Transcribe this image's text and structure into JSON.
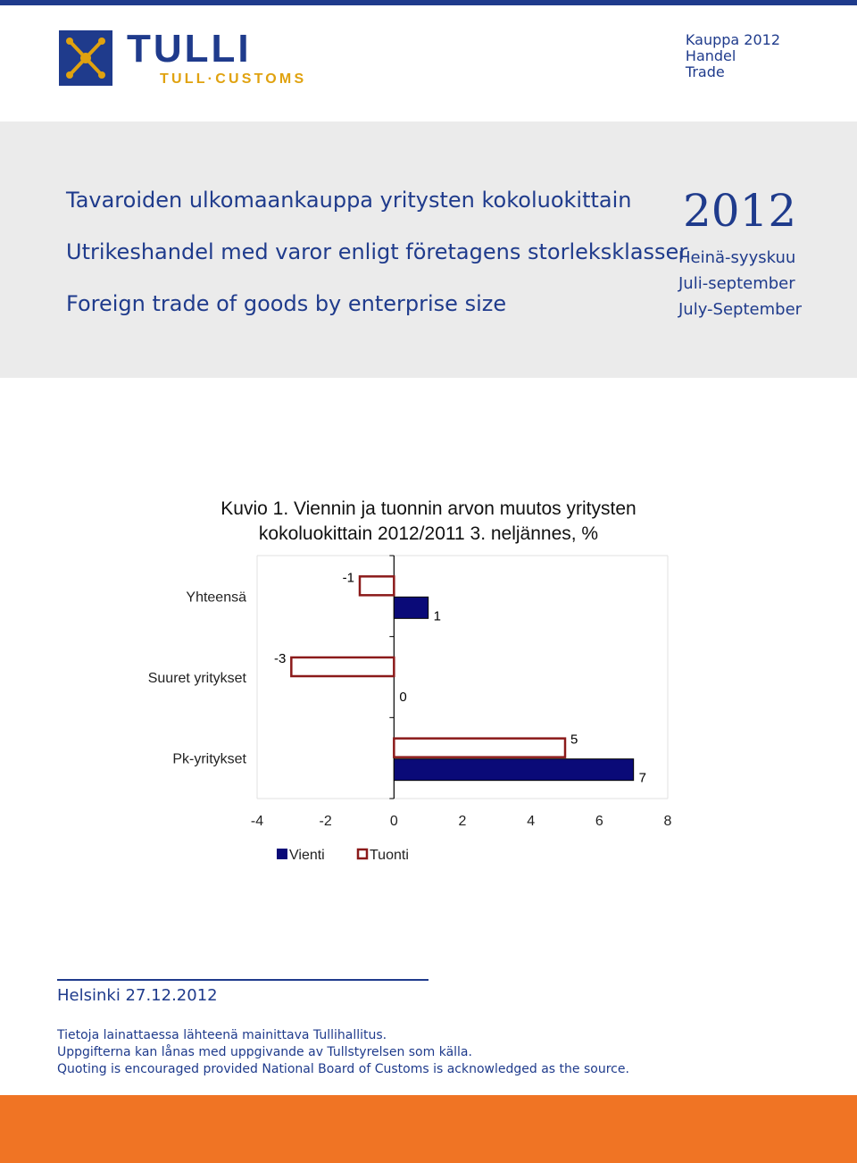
{
  "header": {
    "logo_word": "TULLI",
    "logo_sub": "TULL·CUSTOMS",
    "series": [
      "Kauppa 2012",
      "Handel",
      "Trade"
    ]
  },
  "banner": {
    "titles": [
      "Tavaroiden ulkomaankauppa yritysten kokoluokittain",
      "Utrikeshandel med varor enligt företagens storleksklasser",
      "Foreign trade of goods by enterprise size"
    ],
    "year": "2012",
    "period": [
      "Heinä-syyskuu",
      "Juli-september",
      "July-September"
    ]
  },
  "colors": {
    "accent": "#1f3b8c",
    "vienti": "#0a0a78",
    "tuonti": "#8b1a1a",
    "orange": "#f07424"
  },
  "chart_data": {
    "type": "bar",
    "orientation": "horizontal",
    "title": "Kuvio 1. Viennin ja tuonnin arvon muutos yritysten kokoluokittain 2012/2011 3. neljännes, %",
    "categories": [
      "Yhteensä",
      "Suuret yritykset",
      "Pk-yritykset"
    ],
    "series": [
      {
        "name": "Vienti",
        "values": [
          1,
          0,
          7
        ],
        "labels": [
          "1",
          "0",
          "7"
        ]
      },
      {
        "name": "Tuonti",
        "values": [
          -1,
          -3,
          5
        ],
        "labels": [
          "-1",
          "-3",
          "5"
        ]
      }
    ],
    "xlim": [
      -4,
      8
    ],
    "xticks": [
      "-4",
      "-2",
      "0",
      "2",
      "4",
      "6",
      "8"
    ],
    "legend_position": "bottom",
    "grid": false
  },
  "footer": {
    "place_date": "Helsinki 27.12.2012",
    "notes": [
      "Tietoja lainattaessa lähteenä mainittava Tullihallitus.",
      "Uppgifterna kan lånas med uppgivande av Tullstyrelsen som källa.",
      "Quoting is encouraged provided National Board of Customs is acknowledged as the source."
    ]
  }
}
